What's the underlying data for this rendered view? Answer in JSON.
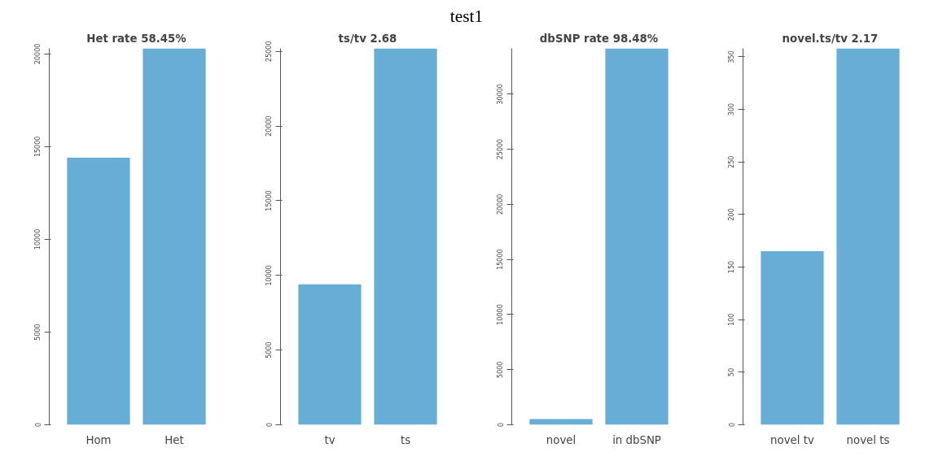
{
  "chart_data": [
    {
      "type": "bar",
      "title": "Het rate 58.45%",
      "annotations": [
        "test1"
      ],
      "categories": [
        "Hom",
        "Het"
      ],
      "values": [
        14400,
        20300
      ],
      "color": "#67aed6",
      "ylim": [
        0,
        20300
      ],
      "yticks": [
        0,
        5000,
        10000,
        15000,
        20000
      ],
      "grid": false,
      "legend": false
    },
    {
      "type": "bar",
      "title": "ts/tv 2.68",
      "categories": [
        "tv",
        "ts"
      ],
      "values": [
        9400,
        25200
      ],
      "color": "#67aed6",
      "ylim": [
        0,
        25200
      ],
      "yticks": [
        0,
        5000,
        10000,
        15000,
        20000,
        25000
      ],
      "grid": false,
      "legend": false
    },
    {
      "type": "bar",
      "title": "dbSNP rate 98.48%",
      "categories": [
        "novel",
        "in dbSNP"
      ],
      "values": [
        520,
        34150
      ],
      "color": "#67aed6",
      "ylim": [
        0,
        34150
      ],
      "yticks": [
        0,
        5000,
        10000,
        15000,
        20000,
        25000,
        30000
      ],
      "grid": false,
      "legend": false
    },
    {
      "type": "bar",
      "title": "novel.ts/tv 2.17",
      "categories": [
        "novel tv",
        "novel ts"
      ],
      "values": [
        165,
        358
      ],
      "color": "#67aed6",
      "ylim": [
        0,
        358
      ],
      "yticks": [
        0,
        50,
        100,
        150,
        200,
        250,
        300,
        350
      ],
      "grid": false,
      "legend": false
    }
  ]
}
